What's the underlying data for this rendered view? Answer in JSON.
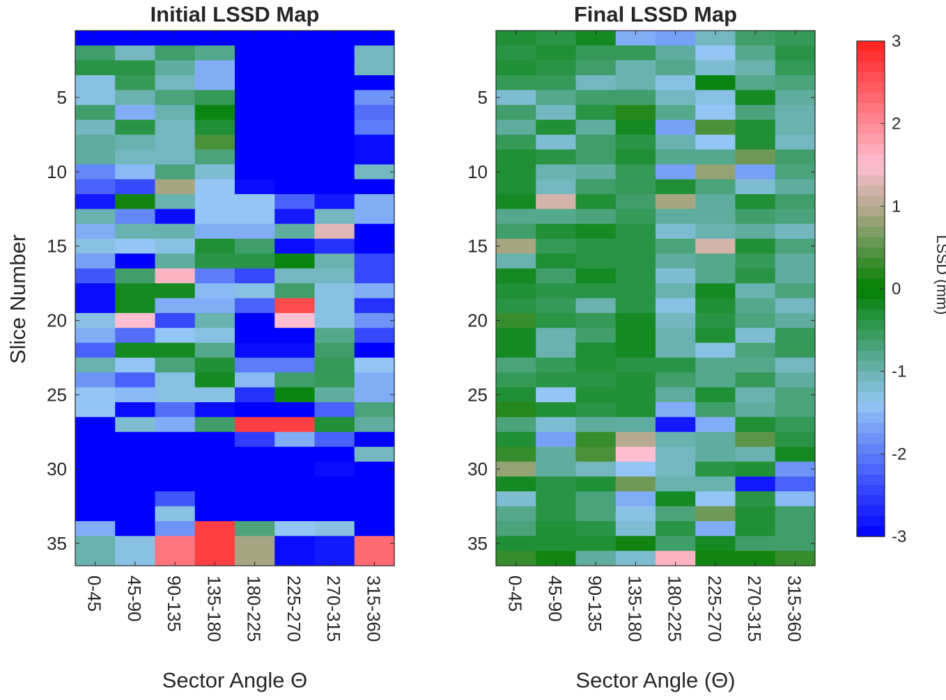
{
  "chart_data": [
    {
      "type": "heatmap",
      "title": "Initial LSSD Map",
      "xlabel": "Sector Angle Θ",
      "ylabel": "Slice Number",
      "categories": [
        "0-45",
        "45-90",
        "90-135",
        "135-180",
        "180-225",
        "225-270",
        "270-315",
        "315-360"
      ],
      "y_range": [
        1,
        36
      ],
      "y_ticks": [
        5,
        10,
        15,
        20,
        25,
        30,
        35
      ],
      "clim": [
        -3,
        3
      ],
      "values": [
        [
          -3,
          -3,
          -3,
          -3,
          -3,
          -3,
          -3,
          -3
        ],
        [
          -0.6,
          -1.1,
          -0.6,
          -0.8,
          -3,
          -3,
          -3,
          -1.1
        ],
        [
          -0.4,
          -0.4,
          -0.9,
          -1.6,
          -3,
          -3,
          -3,
          -1.1
        ],
        [
          -1.3,
          -0.5,
          -1.1,
          -1.6,
          -3,
          -3,
          -3,
          -3
        ],
        [
          -1.3,
          -1.0,
          -0.7,
          -0.5,
          -3,
          -3,
          -3,
          -1.8
        ],
        [
          -0.6,
          -1.6,
          -1.0,
          -0.1,
          -3,
          -3,
          -3,
          -2.1
        ],
        [
          -1.1,
          -0.4,
          -1.1,
          -0.3,
          -3,
          -3,
          -3,
          -2.0
        ],
        [
          -0.9,
          -1.0,
          -1.1,
          0.4,
          -3,
          -3,
          -3,
          -2.9
        ],
        [
          -0.9,
          -1.1,
          -1.1,
          -0.7,
          -3,
          -3,
          -3,
          -2.9
        ],
        [
          -1.9,
          -1.5,
          -0.7,
          -1.2,
          -3,
          -3,
          -3,
          -1.1
        ],
        [
          -2.2,
          -2.4,
          0.9,
          -1.4,
          -2.9,
          -3,
          -3,
          -3
        ],
        [
          -2.8,
          0.1,
          -1.0,
          -1.4,
          -1.4,
          -2.2,
          -2.8,
          -1.6
        ],
        [
          -1.0,
          -1.9,
          -2.9,
          -1.4,
          -1.4,
          -2.8,
          -1.1,
          -1.6
        ],
        [
          -1.6,
          -1.0,
          -1.0,
          -1.6,
          -1.6,
          -0.9,
          1.3,
          -3
        ],
        [
          -1.3,
          -1.4,
          -1.3,
          -0.3,
          -0.6,
          -2.9,
          -2.6,
          -3
        ],
        [
          -1.7,
          -3,
          -0.9,
          -0.4,
          -0.4,
          -0.1,
          -1.0,
          -2.4
        ],
        [
          -2.3,
          -0.6,
          1.6,
          -2.0,
          -2.4,
          -1.1,
          -1.1,
          -2.4
        ],
        [
          -2.9,
          -0.2,
          -0.2,
          -1.5,
          -1.3,
          -0.6,
          -1.3,
          -1.6
        ],
        [
          -2.9,
          -0.2,
          -1.6,
          -1.6,
          -2.2,
          2.6,
          -1.3,
          -2.6
        ],
        [
          -1.3,
          1.5,
          -2.4,
          -1.0,
          -3,
          1.5,
          -1.3,
          -1.8
        ],
        [
          -1.6,
          -2.1,
          -1.4,
          -1.3,
          -3,
          -3,
          -0.8,
          -2.4
        ],
        [
          -2.2,
          -0.2,
          -0.2,
          -0.8,
          -2.9,
          -2.9,
          -0.6,
          -3
        ],
        [
          -1.0,
          -1.4,
          -0.7,
          -0.3,
          -2.0,
          -2.0,
          -0.5,
          -1.4
        ],
        [
          -1.8,
          -2.2,
          -1.3,
          -0.2,
          -1.5,
          -0.6,
          -0.5,
          -1.6
        ],
        [
          -1.4,
          -1.5,
          -1.3,
          -1.3,
          -2.6,
          -0.1,
          -0.9,
          -1.6
        ],
        [
          -1.4,
          -2.9,
          -2.1,
          -2.9,
          -3,
          -3,
          -2.2,
          -0.7
        ],
        [
          -3,
          -1.2,
          -1.6,
          -0.6,
          2.7,
          2.7,
          -0.3,
          -0.9
        ],
        [
          -3,
          -3,
          -3,
          -3,
          -2.5,
          -1.6,
          -2.2,
          -3
        ],
        [
          -3,
          -3,
          -3,
          -3,
          -3,
          -3,
          -3,
          -1.1
        ],
        [
          -3,
          -3,
          -3,
          -3,
          -3,
          -3,
          -2.9,
          -3
        ],
        [
          -3,
          -3,
          -3,
          -3,
          -3,
          -3,
          -3,
          -3
        ],
        [
          -3,
          -3,
          -2.3,
          -3,
          -3,
          -3,
          -3,
          -3
        ],
        [
          -3,
          -3,
          -1.3,
          -3,
          -3,
          -3,
          -3,
          -3
        ],
        [
          -1.6,
          -3,
          -1.8,
          2.7,
          -0.7,
          -1.4,
          -1.3,
          -3
        ],
        [
          -1.0,
          -1.3,
          2.2,
          2.7,
          0.9,
          -2.9,
          -2.8,
          2.3
        ],
        [
          -1.0,
          -1.3,
          2.2,
          2.7,
          0.9,
          -2.9,
          -2.8,
          2.3
        ]
      ]
    },
    {
      "type": "heatmap",
      "title": "Final LSSD Map",
      "xlabel": "Sector Angle (Θ)",
      "ylabel": "",
      "categories": [
        "0-45",
        "45-90",
        "90-135",
        "135-180",
        "180-225",
        "225-270",
        "270-315",
        "315-360"
      ],
      "y_range": [
        1,
        36
      ],
      "y_ticks": [
        5,
        10,
        15,
        20,
        25,
        30,
        35
      ],
      "clim": [
        -3,
        3
      ],
      "values": [
        [
          -0.3,
          -0.4,
          -0.2,
          -1.6,
          -1.7,
          -1.1,
          -0.6,
          -0.5
        ],
        [
          -0.4,
          -0.3,
          -0.5,
          -0.5,
          -0.9,
          -1.4,
          -0.8,
          -0.4
        ],
        [
          -0.3,
          -0.4,
          -0.6,
          -1.0,
          -0.8,
          -1.2,
          -1.0,
          -0.5
        ],
        [
          -0.5,
          -0.5,
          -1.1,
          -1.0,
          -1.3,
          -0.1,
          -0.8,
          -0.7
        ],
        [
          -1.2,
          -0.8,
          -0.6,
          -0.6,
          -1.1,
          -1.3,
          -0.2,
          -0.9
        ],
        [
          -0.6,
          -1.1,
          -0.4,
          0.2,
          -0.8,
          -1.4,
          -0.7,
          -1.0
        ],
        [
          -0.9,
          -0.3,
          -0.9,
          -0.2,
          -1.7,
          0.4,
          -0.3,
          -1.0
        ],
        [
          -0.5,
          -1.2,
          -0.6,
          -0.4,
          -1.0,
          -1.4,
          -0.3,
          -1.1
        ],
        [
          -0.3,
          -0.4,
          -0.6,
          -0.3,
          -0.8,
          -0.8,
          0.6,
          -0.6
        ],
        [
          -0.3,
          -1.0,
          -0.9,
          -0.5,
          -1.7,
          0.8,
          -1.7,
          -0.7
        ],
        [
          -0.3,
          -1.1,
          -0.6,
          -0.5,
          -0.3,
          -0.7,
          -1.2,
          -0.9
        ],
        [
          -0.2,
          1.2,
          -0.3,
          -0.6,
          0.9,
          -0.9,
          -0.3,
          -0.6
        ],
        [
          -0.8,
          -0.8,
          -0.7,
          -0.5,
          -0.9,
          -0.9,
          -0.6,
          -0.7
        ],
        [
          -0.6,
          -0.3,
          -0.2,
          -0.4,
          -1.2,
          -1.0,
          -0.9,
          -1.1
        ],
        [
          0.9,
          -0.5,
          -0.4,
          -0.4,
          -0.7,
          1.2,
          -0.3,
          -0.7
        ],
        [
          -1.0,
          -0.3,
          -0.4,
          -0.4,
          -0.9,
          -0.8,
          -0.5,
          -0.9
        ],
        [
          -0.2,
          -0.6,
          -0.2,
          -0.4,
          -1.2,
          -0.8,
          -0.4,
          -0.9
        ],
        [
          -0.3,
          -0.4,
          -0.4,
          -0.4,
          -1.0,
          -0.2,
          -1.0,
          -0.7
        ],
        [
          -0.4,
          -0.5,
          -1.0,
          -0.4,
          -1.3,
          -0.3,
          -0.8,
          -1.1
        ],
        [
          0.3,
          -0.4,
          -0.5,
          -0.2,
          -1.1,
          -0.4,
          -0.7,
          -0.9
        ],
        [
          -0.2,
          -1.0,
          -0.6,
          -0.2,
          -1.0,
          -0.3,
          -1.2,
          -0.5
        ],
        [
          -0.2,
          -1.0,
          -0.3,
          -0.2,
          -1.0,
          -1.3,
          -0.7,
          -0.5
        ],
        [
          -0.7,
          -0.5,
          -0.3,
          -0.4,
          -0.4,
          -0.8,
          -0.8,
          -1.1
        ],
        [
          -0.5,
          -0.4,
          -0.4,
          -0.3,
          -0.6,
          -0.8,
          -0.5,
          -0.9
        ],
        [
          -0.3,
          -1.4,
          -0.3,
          -0.3,
          -0.9,
          -0.3,
          -1.0,
          -0.7
        ],
        [
          0.2,
          -0.3,
          -0.4,
          -0.3,
          -1.6,
          -0.6,
          -0.9,
          -0.7
        ],
        [
          -0.7,
          -1.2,
          -0.9,
          -0.9,
          -2.8,
          -1.6,
          -0.3,
          -0.5
        ],
        [
          -0.3,
          -1.7,
          0.3,
          1.0,
          -1.0,
          -0.9,
          0.5,
          -0.4
        ],
        [
          0.3,
          -0.9,
          0.4,
          1.5,
          -1.1,
          -0.9,
          -1.0,
          -0.2
        ],
        [
          0.8,
          -0.9,
          -1.1,
          -1.4,
          -1.1,
          -0.4,
          -0.3,
          -1.8
        ],
        [
          -0.2,
          -0.4,
          -0.3,
          0.6,
          -1.0,
          -1.0,
          -2.8,
          -2.2
        ],
        [
          -1.2,
          -0.4,
          -0.7,
          -1.6,
          -0.2,
          -1.4,
          -0.4,
          -1.5
        ],
        [
          -0.8,
          -0.4,
          -0.7,
          -1.3,
          -0.7,
          0.6,
          -0.3,
          -0.6
        ],
        [
          -0.7,
          -0.3,
          -0.4,
          -1.2,
          -0.4,
          -1.6,
          -0.3,
          -0.6
        ],
        [
          -0.3,
          -0.3,
          -0.3,
          0.1,
          -0.6,
          -0.2,
          -0.6,
          -0.6
        ],
        [
          0.3,
          0.1,
          -0.9,
          -1.2,
          1.6,
          0.1,
          0.1,
          0.3
        ]
      ]
    }
  ],
  "colorbar": {
    "label": "LSSD (mm)",
    "ticks": [
      "3",
      "2",
      "1",
      "0",
      "-1",
      "-2",
      "-3"
    ],
    "colors": {
      "high": "#ff1f1f",
      "warm": "#ffbfd0",
      "neutral_warm": "#a6a683",
      "zero": "#008000",
      "cool": "#93c6f5",
      "low": "#0000ff"
    }
  }
}
